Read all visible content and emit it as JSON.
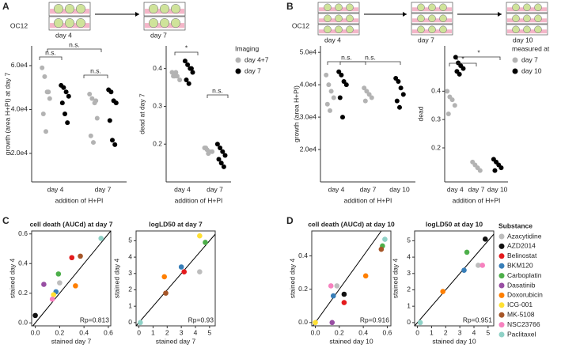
{
  "figure": {
    "panel_labels": [
      "A",
      "B",
      "C",
      "D"
    ],
    "schematics": [
      {
        "label": "OC12",
        "days": [
          "day 4",
          "day 7"
        ]
      },
      {
        "label": "OC12",
        "days": [
          "day 4",
          "day 7",
          "day 10"
        ]
      }
    ],
    "substance_legend": {
      "title": "Substance",
      "names": [
        "Azacytidine",
        "AZD2014",
        "Belinostat",
        "BKM120",
        "Carboplatin",
        "Dasatinib",
        "Doxorubicin",
        "ICG-001",
        "MK-5108",
        "NSC23766",
        "Paclitaxel"
      ],
      "colors": [
        "#bdbdbd",
        "#111111",
        "#e41a1c",
        "#377eb8",
        "#4daf4a",
        "#984ea3",
        "#ff7f00",
        "#ffe033",
        "#a65628",
        "#f781bf",
        "#8ed1c6"
      ]
    }
  },
  "chart_data": [
    {
      "type": "strip",
      "ylabel": "growth (area H+PI) at day 7",
      "xlabel": "addition of H+PI",
      "categories": [
        "day 4",
        "day 7"
      ],
      "ylim": [
        7000,
        69000
      ],
      "yticks": [
        {
          "value": 20000,
          "label": "2.0e4"
        },
        {
          "value": 40000,
          "label": "4.0e4"
        },
        {
          "value": 60000,
          "label": "6.0e4"
        }
      ],
      "series": [
        {
          "name": "day 4+7",
          "color": "#b3b3b3",
          "values": [
            [
              59000,
              55000,
              48000,
              45000,
              38000,
              30000,
              48000
            ],
            [
              47000,
              45000,
              43000,
              36000,
              28000,
              25000,
              44000
            ]
          ]
        },
        {
          "name": "day 7",
          "color": "#000000",
          "values": [
            [
              51000,
              50000,
              48000,
              46000,
              43000,
              38000,
              34000
            ],
            [
              49000,
              48000,
              44000,
              43000,
              35000,
              26000,
              24000
            ]
          ]
        }
      ],
      "annotations": [
        "n.s.",
        "n.s.",
        "n.s."
      ]
    },
    {
      "type": "strip",
      "ylabel": "dead at day 7",
      "xlabel": "addition of H+PI",
      "categories": [
        "day 4",
        "day 7"
      ],
      "ylim": [
        0.1,
        0.46
      ],
      "yticks": [
        0.2,
        0.3,
        0.4
      ],
      "legend_title": "Imaging",
      "series": [
        {
          "name": "day 4+7",
          "color": "#b3b3b3",
          "values": [
            [
              0.39,
              0.38,
              0.38,
              0.37,
              0.38,
              0.39
            ],
            [
              0.19,
              0.185,
              0.18,
              0.18,
              0.19,
              0.175
            ]
          ]
        },
        {
          "name": "day 7",
          "color": "#000000",
          "values": [
            [
              0.42,
              0.41,
              0.4,
              0.39,
              0.37,
              0.36,
              0.4
            ],
            [
              0.2,
              0.19,
              0.18,
              0.17,
              0.16,
              0.15,
              0.14
            ]
          ]
        }
      ],
      "annotations": [
        "*",
        "n.s."
      ]
    },
    {
      "type": "strip",
      "ylabel": "growth (area H+PI)",
      "xlabel": "addition of H+PI",
      "categories": [
        "day 4",
        "day 7",
        "day 10"
      ],
      "ylim": [
        10000,
        52000
      ],
      "yticks": [
        {
          "value": 20000,
          "label": "2.0e4"
        },
        {
          "value": 30000,
          "label": "3.0e4"
        },
        {
          "value": 40000,
          "label": "4.0e4"
        },
        {
          "value": 50000,
          "label": "5.0e4"
        }
      ],
      "series": [
        {
          "name": "day 7",
          "color": "#b3b3b3",
          "values": [
            [
              43000,
              40000,
              38000,
              36000,
              34000,
              32000
            ],
            [
              39000,
              38000,
              37000,
              36000,
              35000
            ],
            []
          ]
        },
        {
          "name": "day 10",
          "color": "#000000",
          "values": [
            [
              44000,
              43000,
              41000,
              40000,
              36000,
              30000
            ],
            [],
            [
              42000,
              41000,
              39000,
              37000,
              35000,
              33000
            ]
          ]
        }
      ],
      "annotations": [
        "n.s.",
        "n.s."
      ]
    },
    {
      "type": "strip",
      "ylabel": "dead",
      "xlabel": "addition of H+PI",
      "categories": [
        "day 4",
        "day 7",
        "day 10"
      ],
      "ylim": [
        0.08,
        0.56
      ],
      "yticks": [
        0.2,
        0.3,
        0.4
      ],
      "legend_title": "measured at",
      "series": [
        {
          "name": "day 7",
          "color": "#b3b3b3",
          "values": [
            [
              0.4,
              0.38,
              0.37,
              0.35,
              0.32
            ],
            [
              0.15,
              0.14,
              0.13,
              0.12
            ],
            []
          ]
        },
        {
          "name": "day 10",
          "color": "#000000",
          "values": [
            [
              0.52,
              0.5,
              0.49,
              0.48,
              0.47,
              0.46
            ],
            [],
            [
              0.16,
              0.15,
              0.14,
              0.13,
              0.12
            ]
          ]
        }
      ],
      "annotations": [
        "*",
        "*"
      ]
    },
    {
      "type": "scatter",
      "title": "cell death (AUCd) at day 7",
      "xlabel": "stained day 7",
      "ylabel": "stained day 4",
      "xlim": [
        -0.03,
        0.62
      ],
      "ylim": [
        -0.02,
        0.62
      ],
      "xticks": [
        {
          "value": 0,
          "label": "0.0"
        },
        0.2,
        0.4,
        0.6
      ],
      "yticks": [
        {
          "value": 0,
          "label": "0.0"
        },
        0.2,
        0.4,
        0.6
      ],
      "x": [
        0.2,
        0.0,
        0.3,
        0.17,
        0.19,
        0.07,
        0.33,
        0.15,
        0.37,
        0.14,
        0.54
      ],
      "y": [
        0.27,
        0.05,
        0.44,
        0.21,
        0.33,
        0.26,
        0.25,
        0.19,
        0.45,
        0.16,
        0.57
      ],
      "annotation": "Rp=0.813"
    },
    {
      "type": "scatter",
      "title": "logLD50 at day 7",
      "xlabel": "stained day 7",
      "ylabel": "stained day 4",
      "xlim": [
        -0.2,
        5.4
      ],
      "ylim": [
        -0.2,
        5.6
      ],
      "xticks": [
        0,
        1,
        2,
        3,
        4,
        5
      ],
      "yticks": [
        0,
        1,
        2,
        3,
        4,
        5
      ],
      "x": [
        4.3,
        null,
        3.2,
        3.0,
        4.7,
        null,
        1.8,
        4.3,
        1.9,
        null,
        0.1
      ],
      "y": [
        3.1,
        null,
        3.1,
        3.4,
        4.9,
        null,
        2.8,
        5.3,
        1.8,
        null,
        0.0
      ],
      "annotation": "Rp=0.93"
    },
    {
      "type": "scatter",
      "title": "cell death (AUCd) at day 10",
      "xlabel": "stained day 10",
      "ylabel": "stained day 4",
      "xlim": [
        -0.03,
        0.63
      ],
      "ylim": [
        -0.02,
        0.55
      ],
      "xticks": [
        {
          "value": 0,
          "label": "0.0"
        },
        0.2,
        0.4,
        0.6
      ],
      "yticks": [
        {
          "value": 0,
          "label": "0.0"
        },
        0.2,
        0.4
      ],
      "x": [
        0.18,
        0.24,
        0.24,
        0.15,
        0.56,
        0.14,
        0.42,
        0.0,
        0.55,
        0.13,
        0.58
      ],
      "y": [
        0.22,
        0.17,
        0.12,
        0.16,
        0.46,
        0.0,
        0.28,
        0.0,
        0.44,
        0.22,
        0.5
      ],
      "annotation": "Rp=0.916"
    },
    {
      "type": "scatter",
      "title": "logLD50 at day 10",
      "xlabel": "stained day 10",
      "ylabel": "stained day 4",
      "xlim": [
        -0.2,
        5.4
      ],
      "ylim": [
        -0.2,
        5.6
      ],
      "xticks": [
        0,
        1,
        2,
        3,
        4,
        5
      ],
      "yticks": [
        0,
        1,
        2,
        3,
        4,
        5
      ],
      "x": [
        4.3,
        4.8,
        null,
        3.3,
        3.5,
        null,
        1.8,
        null,
        null,
        4.6,
        0.2
      ],
      "y": [
        3.5,
        5.1,
        null,
        3.2,
        4.3,
        null,
        1.9,
        null,
        null,
        3.5,
        0.0
      ],
      "annotation": "Rp=0.951"
    }
  ]
}
